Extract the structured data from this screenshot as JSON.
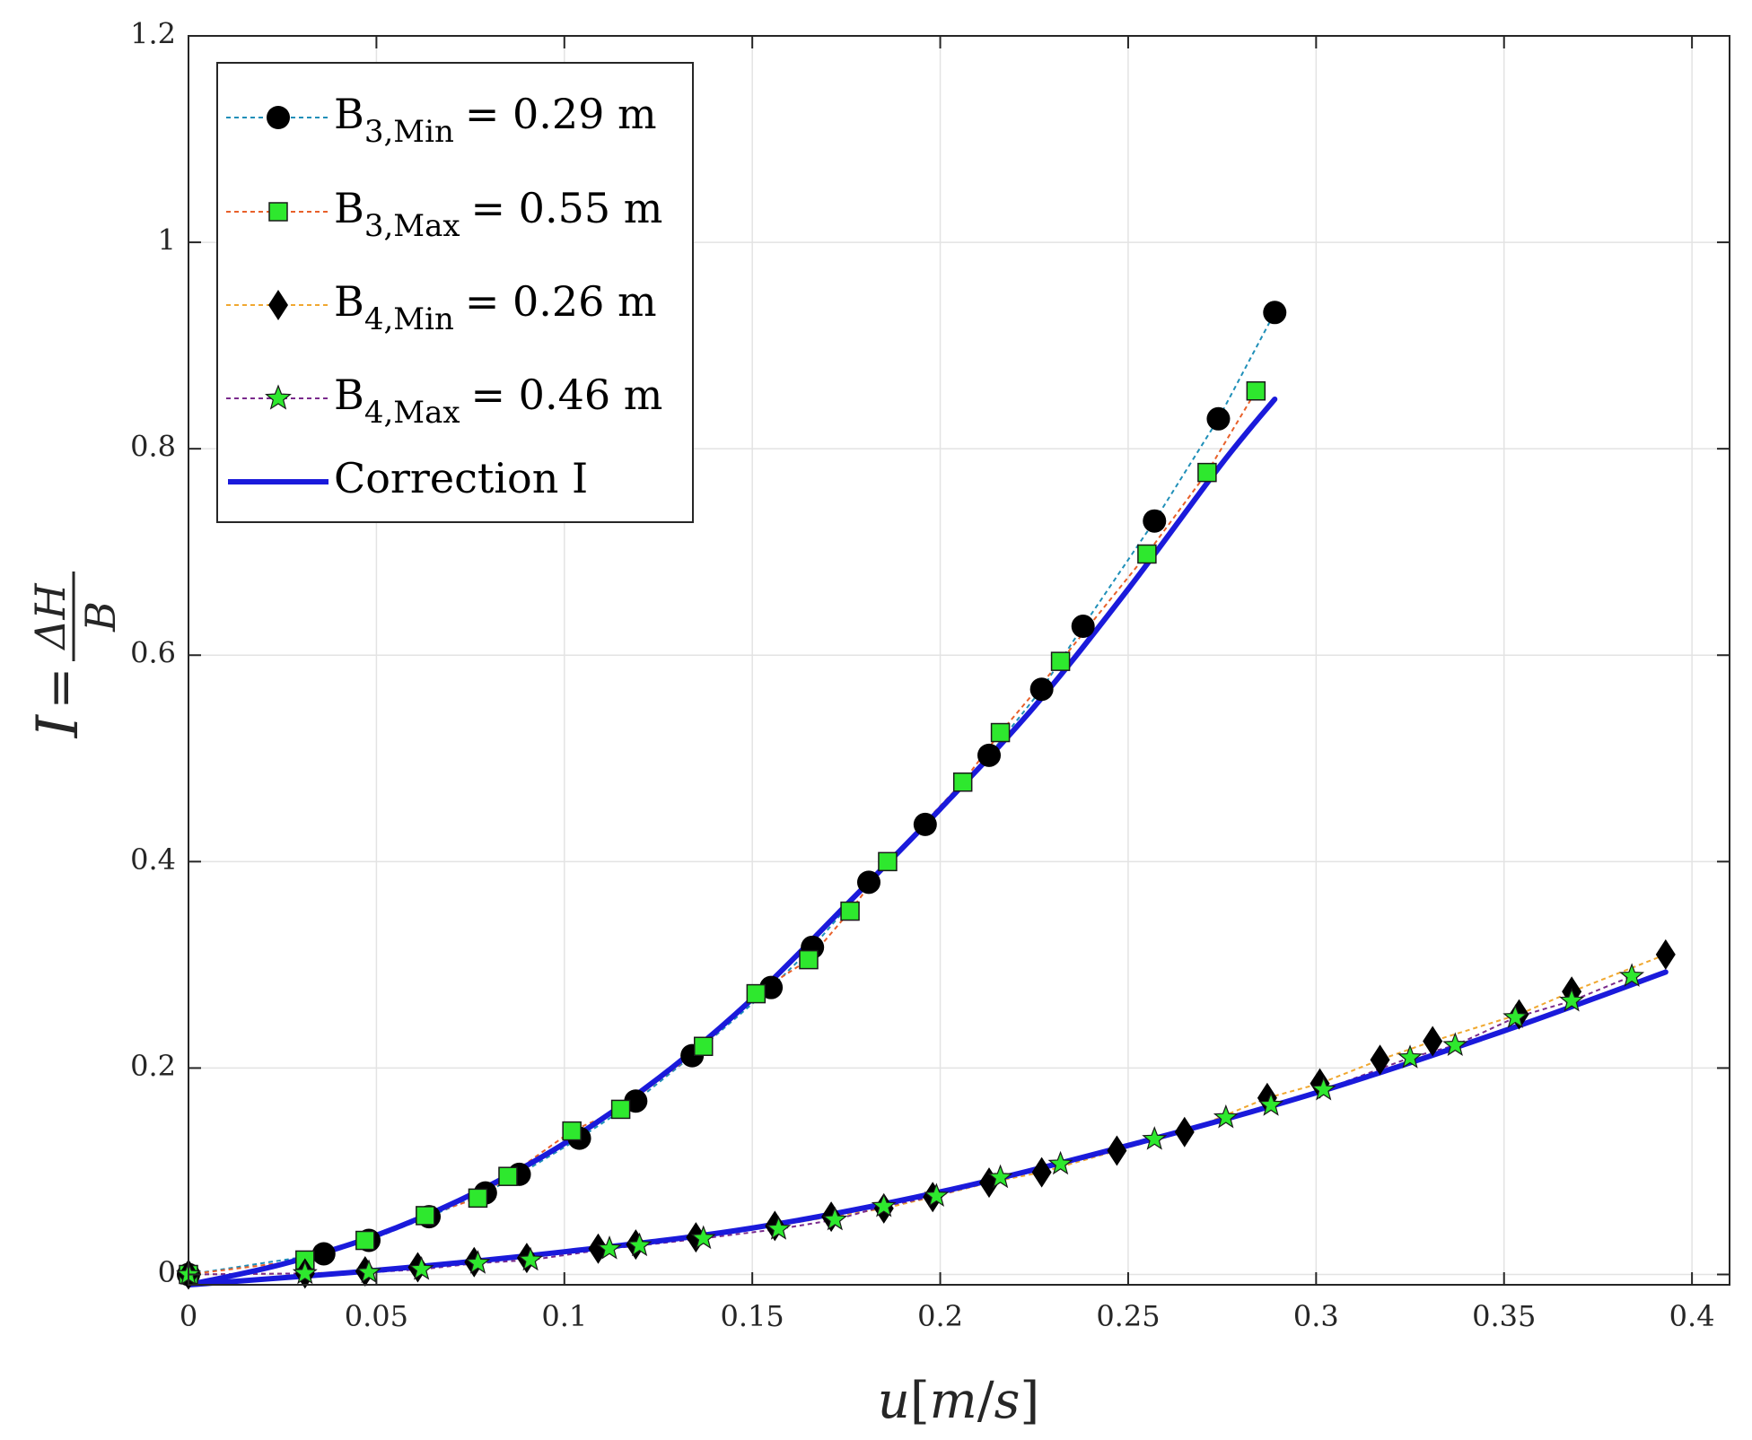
{
  "chart_data": {
    "type": "scatter",
    "title": "",
    "xlabel": {
      "var": "u",
      "bracket_open": "[",
      "numerator": "m",
      "slash": "/",
      "denominator": "s",
      "bracket_close": "]"
    },
    "ylabel": {
      "lhs": "I",
      "equals": "=",
      "numerator": "ΔH",
      "denominator": "B"
    },
    "xlim": [
      0,
      0.41
    ],
    "ylim": [
      -0.01,
      1.2
    ],
    "grid": true,
    "xticks": [
      0,
      0.05,
      0.1,
      0.15,
      0.2,
      0.25,
      0.3,
      0.35,
      0.4
    ],
    "xtick_labels": [
      "0",
      "0.05",
      "0.1",
      "0.15",
      "0.2",
      "0.25",
      "0.3",
      "0.35",
      "0.4"
    ],
    "yticks": [
      0,
      0.2,
      0.4,
      0.6,
      0.8,
      1,
      1.2
    ],
    "ytick_labels": [
      "0",
      "0.2",
      "0.4",
      "0.6",
      "0.8",
      "1",
      "1.2"
    ],
    "legend_position": "top-left",
    "series": [
      {
        "name": "B3,Min = 0.29 m",
        "legend": {
          "base": "B",
          "sub": "3,Min",
          "suffix": "= 0.29 m"
        },
        "marker": "circle",
        "marker_fill": "#000000",
        "line_color": "#1f8fb8",
        "x": [
          0,
          0.036,
          0.048,
          0.064,
          0.079,
          0.088,
          0.104,
          0.119,
          0.134,
          0.155,
          0.166,
          0.181,
          0.196,
          0.213,
          0.227,
          0.238,
          0.257,
          0.274,
          0.289
        ],
        "y": [
          0,
          0.02,
          0.033,
          0.056,
          0.079,
          0.097,
          0.132,
          0.168,
          0.212,
          0.278,
          0.317,
          0.38,
          0.436,
          0.503,
          0.567,
          0.628,
          0.73,
          0.829,
          0.932
        ]
      },
      {
        "name": "B3,Max = 0.55 m",
        "legend": {
          "base": "B",
          "sub": "3,Max",
          "suffix": "= 0.55 m"
        },
        "marker": "square",
        "marker_fill": "#2ee82e",
        "line_color": "#e8602a",
        "x": [
          0,
          0.031,
          0.047,
          0.063,
          0.077,
          0.085,
          0.102,
          0.115,
          0.137,
          0.151,
          0.165,
          0.176,
          0.186,
          0.206,
          0.216,
          0.232,
          0.255,
          0.271,
          0.284
        ],
        "y": [
          0,
          0.014,
          0.033,
          0.057,
          0.074,
          0.095,
          0.139,
          0.16,
          0.221,
          0.272,
          0.305,
          0.352,
          0.4,
          0.477,
          0.525,
          0.594,
          0.698,
          0.777,
          0.856
        ]
      },
      {
        "name": "B4,Min = 0.26 m",
        "legend": {
          "base": "B",
          "sub": "4,Min",
          "suffix": "= 0.26 m"
        },
        "marker": "diamond",
        "marker_fill": "#000000",
        "line_color": "#f0a830",
        "x": [
          0,
          0.031,
          0.047,
          0.061,
          0.076,
          0.09,
          0.109,
          0.119,
          0.135,
          0.156,
          0.171,
          0.185,
          0.198,
          0.213,
          0.227,
          0.247,
          0.265,
          0.287,
          0.301,
          0.317,
          0.331,
          0.354,
          0.368,
          0.393
        ],
        "y": [
          0,
          0.001,
          0.003,
          0.007,
          0.012,
          0.016,
          0.025,
          0.029,
          0.036,
          0.047,
          0.056,
          0.064,
          0.075,
          0.089,
          0.099,
          0.12,
          0.138,
          0.171,
          0.185,
          0.208,
          0.226,
          0.252,
          0.274,
          0.31
        ]
      },
      {
        "name": "B4,Max = 0.46 m",
        "legend": {
          "base": "B",
          "sub": "4,Max",
          "suffix": "= 0.46 m"
        },
        "marker": "star",
        "marker_fill": "#2ee82e",
        "line_color": "#7a2a8c",
        "x": [
          0,
          0.031,
          0.048,
          0.062,
          0.077,
          0.091,
          0.112,
          0.12,
          0.137,
          0.157,
          0.172,
          0.185,
          0.199,
          0.216,
          0.232,
          0.257,
          0.276,
          0.288,
          0.302,
          0.325,
          0.337,
          0.353,
          0.368,
          0.384
        ],
        "y": [
          0,
          0.001,
          0.002,
          0.005,
          0.011,
          0.014,
          0.025,
          0.028,
          0.035,
          0.044,
          0.053,
          0.066,
          0.076,
          0.094,
          0.107,
          0.131,
          0.152,
          0.164,
          0.179,
          0.21,
          0.222,
          0.249,
          0.265,
          0.289
        ]
      }
    ],
    "fits": [
      {
        "name": "Correction I",
        "legend": {
          "label": "Correction I"
        },
        "color": "#1a1adb",
        "curves": [
          {
            "x": [
              0,
              0.025,
              0.05,
              0.075,
              0.1,
              0.125,
              0.15,
              0.175,
              0.2,
              0.225,
              0.25,
              0.275,
              0.289
            ],
            "y": [
              -0.01,
              0.01,
              0.038,
              0.077,
              0.127,
              0.19,
              0.267,
              0.358,
              0.451,
              0.55,
              0.664,
              0.786,
              0.848
            ]
          },
          {
            "x": [
              0,
              0.05,
              0.1,
              0.15,
              0.2,
              0.25,
              0.3,
              0.35,
              0.393
            ],
            "y": [
              -0.01,
              0.004,
              0.022,
              0.045,
              0.08,
              0.125,
              0.176,
              0.236,
              0.293
            ]
          }
        ]
      }
    ]
  }
}
